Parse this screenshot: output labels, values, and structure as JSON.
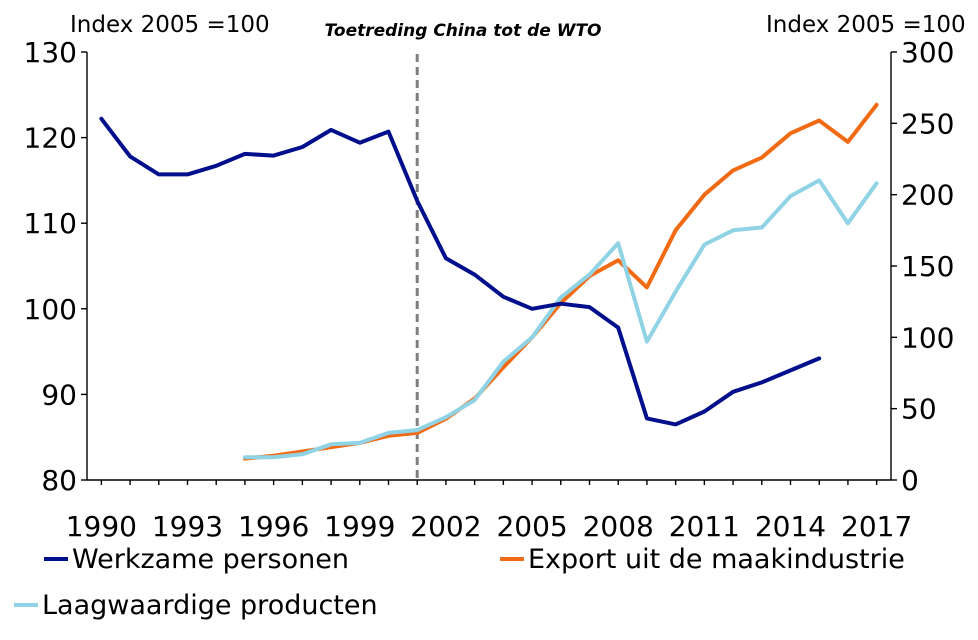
{
  "chart_data": {
    "type": "line",
    "title": "",
    "left_axis_label": "Index 2005 =100",
    "right_axis_label": "Index 2005 =100",
    "left_ylim": [
      80,
      130
    ],
    "left_ticks": [
      80,
      90,
      100,
      110,
      120,
      130
    ],
    "right_ylim": [
      0,
      300
    ],
    "right_ticks": [
      0,
      50,
      100,
      150,
      200,
      250,
      300
    ],
    "xlim": [
      1989.5,
      2017.5
    ],
    "x_tick_labels": [
      "1990",
      "1993",
      "1996",
      "1999",
      "2002",
      "2005",
      "2008",
      "2011",
      "2014",
      "2017"
    ],
    "x_tick_values": [
      1990,
      1993,
      1996,
      1999,
      2002,
      2005,
      2008,
      2011,
      2014,
      2017
    ],
    "annotation": {
      "text": "Toetreding China tot de WTO",
      "x": 2001
    },
    "series": [
      {
        "name": "Werkzame personen",
        "axis": "left",
        "color": "#000f8c",
        "x": [
          1990,
          1991,
          1992,
          1993,
          1994,
          1995,
          1996,
          1997,
          1998,
          1999,
          2000,
          2001,
          2002,
          2003,
          2004,
          2005,
          2006,
          2007,
          2008,
          2009,
          2010,
          2011,
          2012,
          2013,
          2014,
          2015
        ],
        "values": [
          122.2,
          117.8,
          115.7,
          115.7,
          116.7,
          118.1,
          117.9,
          118.9,
          120.9,
          119.4,
          120.7,
          112.6,
          105.9,
          104.0,
          101.4,
          100.0,
          100.6,
          100.2,
          97.8,
          87.2,
          86.5,
          88.0,
          90.3,
          91.4,
          92.8,
          94.2
        ]
      },
      {
        "name": "Export uit de maakindustrie",
        "axis": "right",
        "color": "#f26b14",
        "x": [
          1995,
          1996,
          1997,
          1998,
          1999,
          2000,
          2001,
          2002,
          2003,
          2004,
          2005,
          2006,
          2007,
          2008,
          2009,
          2010,
          2011,
          2012,
          2013,
          2014,
          2015,
          2016,
          2017
        ],
        "values": [
          15,
          17,
          20,
          23,
          26,
          31,
          33,
          43,
          57,
          79,
          100,
          124,
          143,
          154,
          135,
          175,
          200,
          217,
          226,
          243,
          252,
          237,
          263
        ]
      },
      {
        "name": "Laagwaardige producten",
        "axis": "right",
        "color": "#8fd3e5",
        "x": [
          1995,
          1996,
          1997,
          1998,
          1999,
          2000,
          2001,
          2002,
          2003,
          2004,
          2005,
          2006,
          2007,
          2008,
          2009,
          2010,
          2011,
          2012,
          2013,
          2014,
          2015,
          2016,
          2017
        ],
        "values": [
          16,
          16,
          18,
          25,
          26,
          33,
          35,
          44,
          56,
          83,
          100,
          128,
          144,
          166,
          97,
          132,
          165,
          175,
          177,
          199,
          210,
          180,
          208
        ]
      }
    ]
  }
}
